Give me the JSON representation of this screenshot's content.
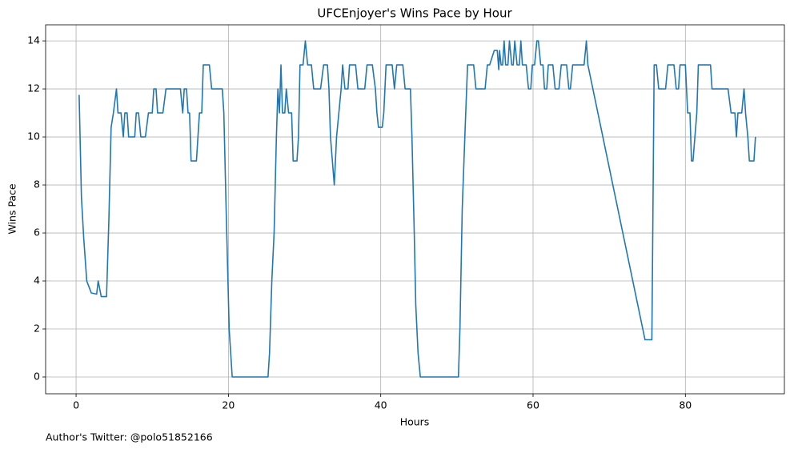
{
  "chart_data": {
    "type": "line",
    "title": "UFCEnjoyer's Wins Pace by Hour",
    "x_label": "Hours",
    "y_label": "Wins Pace",
    "annotation": "Author's Twitter: @polo51852166",
    "grid": true,
    "xlim": [
      -4.0,
      93.0
    ],
    "ylim": [
      -0.7,
      14.67
    ],
    "xticks": [
      0,
      20,
      40,
      60,
      80
    ],
    "yticks": [
      0,
      2,
      4,
      6,
      8,
      10,
      12,
      14
    ],
    "series": [
      {
        "name": "Wins Pace",
        "color": "#1f77b4",
        "x": [
          0.4,
          0.7,
          1.0,
          1.4,
          2.0,
          2.7,
          2.9,
          3.3,
          4.0,
          4.3,
          4.6,
          4.9,
          5.3,
          5.5,
          5.9,
          6.2,
          6.4,
          6.7,
          6.9,
          7.7,
          7.9,
          8.2,
          8.5,
          9.1,
          9.5,
          10.0,
          10.2,
          10.5,
          10.7,
          11.4,
          11.8,
          13.7,
          14.0,
          14.2,
          14.5,
          14.7,
          14.9,
          15.1,
          15.8,
          16.0,
          16.2,
          16.5,
          16.7,
          17.5,
          17.8,
          19.2,
          19.4,
          19.7,
          20.1,
          20.5,
          25.2,
          25.4,
          25.7,
          26.0,
          26.3,
          26.5,
          26.7,
          26.9,
          27.1,
          27.4,
          27.6,
          27.9,
          28.3,
          28.5,
          29.0,
          29.2,
          29.4,
          29.8,
          30.1,
          30.4,
          30.9,
          31.2,
          32.1,
          32.5,
          33.0,
          33.2,
          33.4,
          33.9,
          34.2,
          34.5,
          34.8,
          35.0,
          35.3,
          35.7,
          35.9,
          36.7,
          37.0,
          37.9,
          38.2,
          38.9,
          39.3,
          39.5,
          39.7,
          40.2,
          40.4,
          40.7,
          41.5,
          41.8,
          42.1,
          42.9,
          43.2,
          43.9,
          44.1,
          44.4,
          44.6,
          44.9,
          45.2,
          50.2,
          50.4,
          50.7,
          51.1,
          51.4,
          52.2,
          52.5,
          53.7,
          54.0,
          54.3,
          54.6,
          54.9,
          55.3,
          55.5,
          55.6,
          55.8,
          56.0,
          56.2,
          56.4,
          56.7,
          56.9,
          57.2,
          57.4,
          57.6,
          57.9,
          58.2,
          58.4,
          58.6,
          59.1,
          59.4,
          59.7,
          59.9,
          60.2,
          60.5,
          60.7,
          61.0,
          61.3,
          61.5,
          61.8,
          62.0,
          62.6,
          62.9,
          63.4,
          63.7,
          64.4,
          64.7,
          64.9,
          65.2,
          66.7,
          67.0,
          67.2,
          74.7,
          74.9,
          75.6,
          75.9,
          76.2,
          76.5,
          77.4,
          77.7,
          78.5,
          78.8,
          79.1,
          79.3,
          80.0,
          80.3,
          80.6,
          80.8,
          81.0,
          81.5,
          81.7,
          83.3,
          83.5,
          85.6,
          86.0,
          86.5,
          86.7,
          86.9,
          87.4,
          87.7,
          87.9,
          88.2,
          88.4,
          89.0,
          89.2
        ],
        "values": [
          11.75,
          7.5,
          5.8,
          4,
          3.5,
          3.45,
          4,
          3.35,
          3.35,
          6.5,
          10.4,
          11,
          12,
          11,
          11,
          10,
          11,
          11,
          10,
          10,
          11,
          11,
          10,
          10,
          11,
          11,
          12,
          12,
          11,
          11,
          12,
          12,
          11,
          12,
          12,
          11,
          11,
          9,
          9,
          10,
          11,
          11,
          13,
          13,
          12,
          12,
          11,
          7,
          2,
          0,
          0,
          1,
          4,
          6,
          10,
          12,
          11,
          13,
          11,
          11,
          12,
          11,
          11,
          9,
          9,
          10,
          13,
          13,
          14,
          13,
          13,
          12,
          12,
          13,
          13,
          12,
          10,
          8,
          10,
          11,
          12,
          13,
          12,
          12,
          13,
          13,
          12,
          12,
          13,
          13,
          12,
          11,
          10.4,
          10.4,
          11,
          13,
          13,
          12,
          13,
          13,
          12,
          12,
          10,
          6,
          3,
          1,
          0,
          0,
          2,
          7,
          10.5,
          13,
          13,
          12,
          12,
          13,
          13,
          13.3,
          13.6,
          13.6,
          12.8,
          13.6,
          13,
          13,
          14,
          13,
          13,
          14,
          13,
          13,
          14,
          13,
          13,
          14,
          13,
          13,
          12,
          12,
          13,
          13,
          14,
          14,
          13,
          13,
          12,
          12,
          13,
          13,
          12,
          12,
          13,
          13,
          12,
          12,
          13,
          13,
          14,
          13,
          1.55,
          1.55,
          1.55,
          13,
          13,
          12,
          12,
          13,
          13,
          12,
          12,
          13,
          13,
          11,
          11,
          9,
          9,
          11,
          13,
          13,
          12,
          12,
          11,
          11,
          10,
          11,
          11,
          12,
          11,
          10,
          9,
          9,
          10
        ]
      }
    ]
  }
}
